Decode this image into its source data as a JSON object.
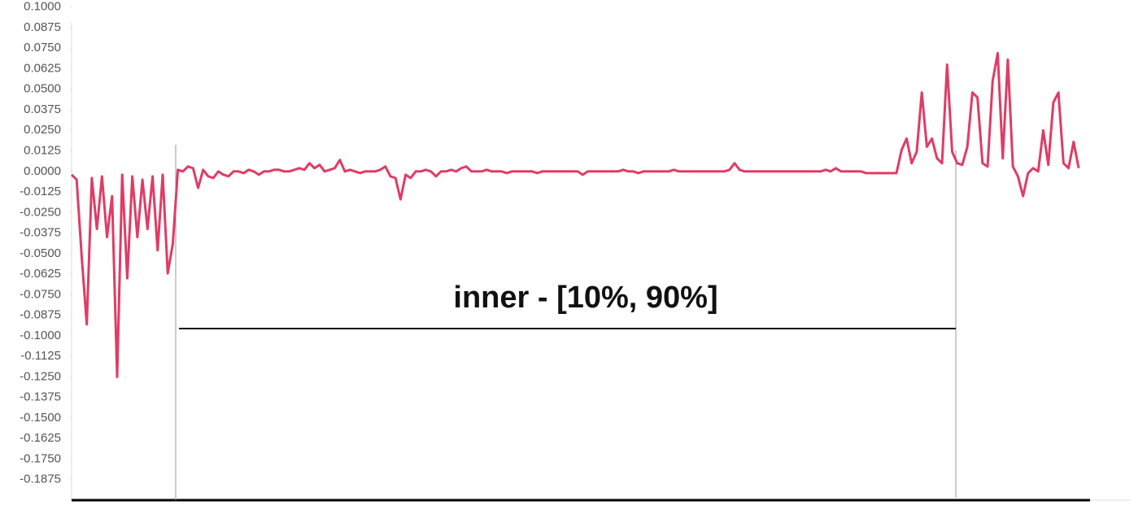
{
  "chart_data": {
    "type": "line",
    "annotation": "inner - [10%, 90%]",
    "ylim": [
      -0.2,
      0.1
    ],
    "yticks": [
      {
        "value": 0.1,
        "label": "0.1000"
      },
      0.0875,
      {
        "value": 0.075,
        "label": "0.0750"
      },
      0.0625,
      {
        "value": 0.05,
        "label": "0.0500"
      },
      0.0375,
      {
        "value": 0.025,
        "label": "0.0250"
      },
      0.0125,
      {
        "value": 0,
        "label": "0.0000"
      },
      -0.0125,
      {
        "value": -0.025,
        "label": "-0.0250"
      },
      -0.0375,
      {
        "value": -0.05,
        "label": "-0.0500"
      },
      -0.0625,
      {
        "value": -0.075,
        "label": "-0.0750"
      },
      -0.0875,
      {
        "value": -0.1,
        "label": "-0.1000"
      },
      -0.1125,
      {
        "value": -0.125,
        "label": "-0.1250"
      },
      -0.1375,
      {
        "value": -0.15,
        "label": "-0.1500"
      },
      -0.1625,
      {
        "value": -0.175,
        "label": "-0.1750"
      },
      -0.1875
    ],
    "grid": false,
    "series": [
      {
        "color": "#e03c64",
        "values": [
          -0.002,
          -0.005,
          -0.052,
          -0.093,
          -0.004,
          -0.035,
          -0.003,
          -0.04,
          -0.015,
          -0.125,
          -0.002,
          -0.065,
          -0.003,
          -0.04,
          -0.005,
          -0.035,
          -0.003,
          -0.048,
          -0.002,
          -0.062,
          -0.044,
          0.001,
          0.0,
          0.003,
          0.002,
          -0.01,
          0.001,
          -0.003,
          -0.004,
          0.0,
          -0.002,
          -0.003,
          0.0,
          0.0,
          -0.001,
          0.001,
          0.0,
          -0.002,
          0.0,
          0.0,
          0.001,
          0.001,
          0.0,
          0.0,
          0.001,
          0.002,
          0.001,
          0.005,
          0.002,
          0.004,
          0.0,
          0.001,
          0.002,
          0.007,
          0.0,
          0.001,
          0.0,
          -0.001,
          0.0,
          0.0,
          0.0,
          0.001,
          0.003,
          -0.003,
          -0.004,
          -0.017,
          -0.002,
          -0.004,
          0.0,
          0.0,
          0.001,
          0.0,
          -0.003,
          0.0,
          0.0,
          0.001,
          0.0,
          0.002,
          0.003,
          0.0,
          0.0,
          0.0,
          0.001,
          0.0,
          0.0,
          0.0,
          -0.001,
          0.0,
          0.0,
          0.0,
          0.0,
          0.0,
          -0.001,
          0.0,
          0.0,
          0.0,
          0.0,
          0.0,
          0.0,
          0.0,
          0.0,
          -0.002,
          0.0,
          0.0,
          0.0,
          0.0,
          0.0,
          0.0,
          0.0,
          0.001,
          0.0,
          0.0,
          -0.001,
          0.0,
          0.0,
          0.0,
          0.0,
          0.0,
          0.0,
          0.001,
          0.0,
          0.0,
          0.0,
          0.0,
          0.0,
          0.0,
          0.0,
          0.0,
          0.0,
          0.0,
          0.001,
          0.005,
          0.001,
          0.0,
          0.0,
          0.0,
          0.0,
          0.0,
          0.0,
          0.0,
          0.0,
          0.0,
          0.0,
          0.0,
          0.0,
          0.0,
          0.0,
          0.0,
          0.0,
          0.001,
          0.0,
          0.002,
          0.0,
          0.0,
          0.0,
          0.0,
          0.0,
          -0.001,
          -0.001,
          -0.001,
          -0.001,
          -0.001,
          -0.001,
          -0.001,
          0.013,
          0.02,
          0.005,
          0.012,
          0.048,
          0.015,
          0.02,
          0.008,
          0.005,
          0.065,
          0.012,
          0.005,
          0.004,
          0.015,
          0.048,
          0.045,
          0.005,
          0.003,
          0.055,
          0.072,
          0.008,
          0.068,
          0.003,
          -0.003,
          -0.015,
          -0.001,
          0.002,
          0.0,
          0.025,
          0.004,
          0.042,
          0.048,
          0.005,
          0.002,
          0.018,
          0.002
        ]
      }
    ]
  }
}
